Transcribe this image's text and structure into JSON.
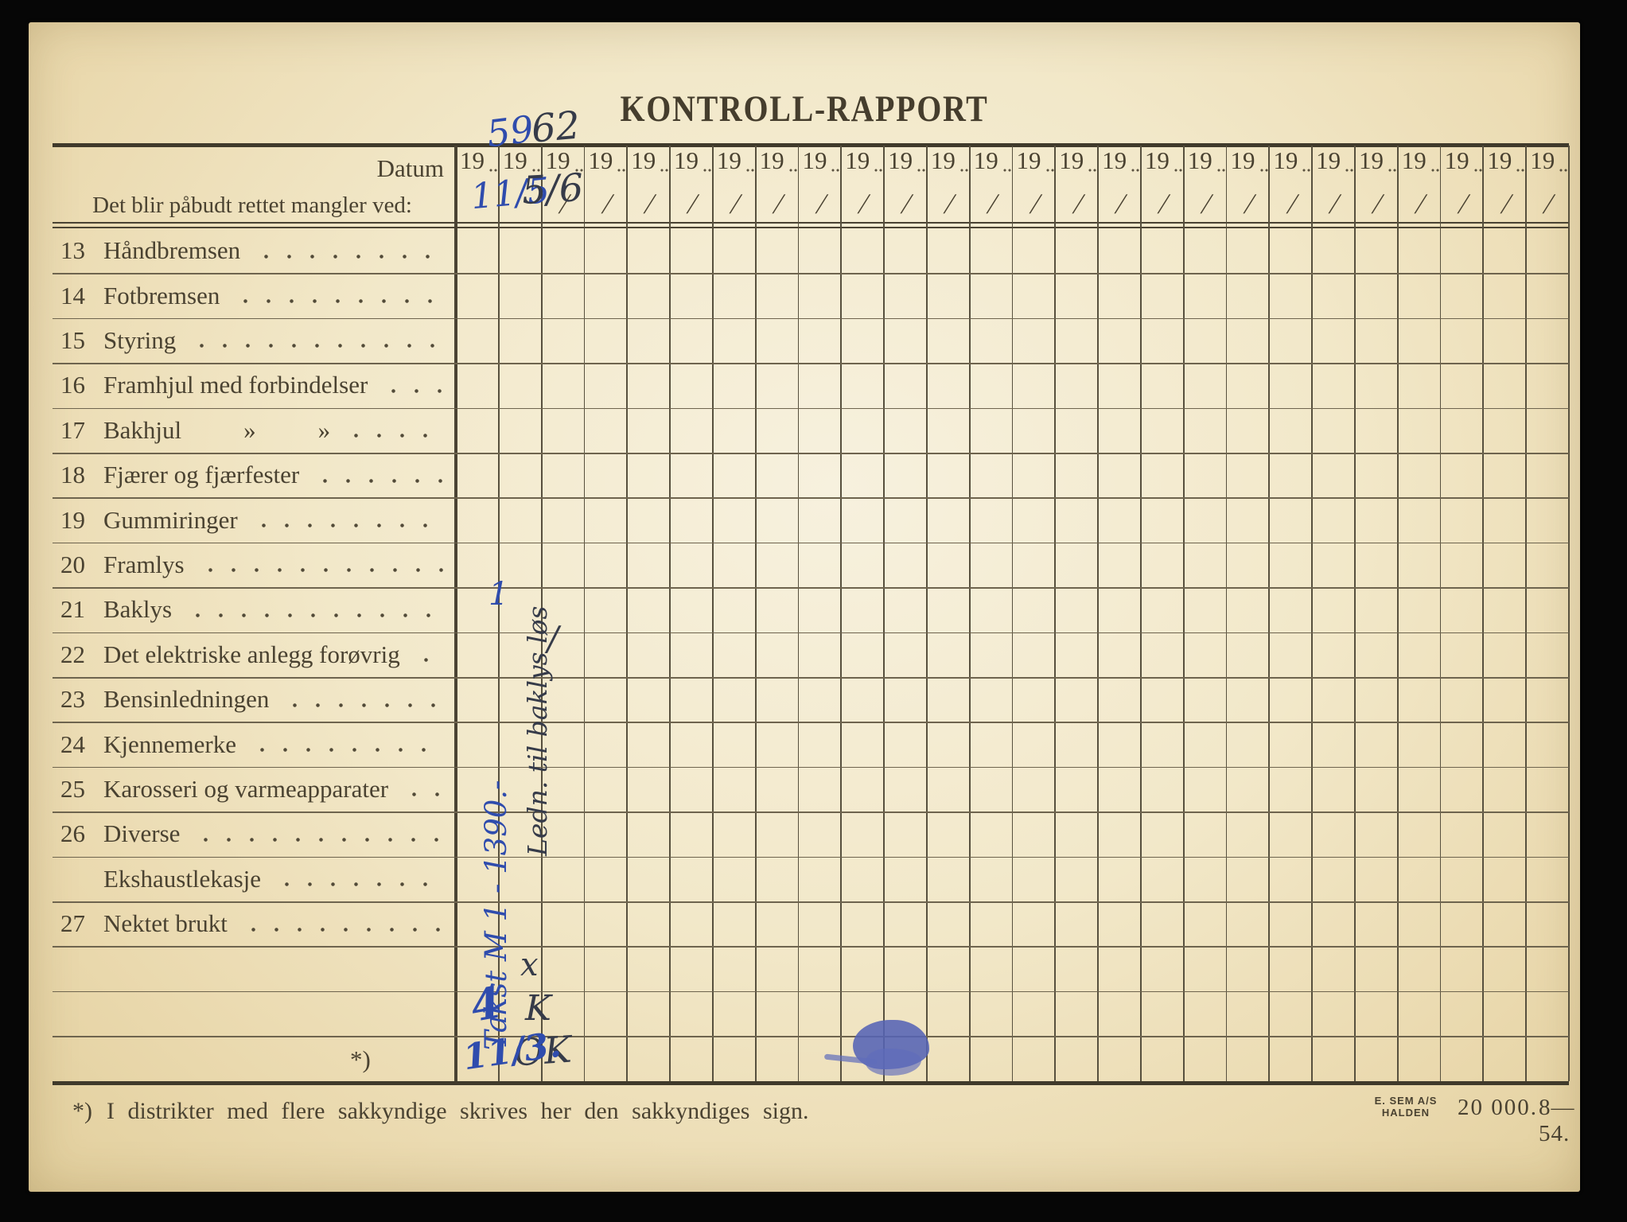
{
  "title": "KONTROLL-RAPPORT",
  "table": {
    "datum_label": "Datum",
    "mandate_label": "Det blir påbudt rettet mangler ved:",
    "year_prefix": "19",
    "date_slash": "/",
    "column_count": 26,
    "rows": [
      {
        "num": "13",
        "label": "Håndbremsen"
      },
      {
        "num": "14",
        "label": "Fotbremsen"
      },
      {
        "num": "15",
        "label": "Styring"
      },
      {
        "num": "16",
        "label": "Framhjul med forbindelser"
      },
      {
        "num": "17",
        "label": "Bakhjul",
        "ditto": [
          "»",
          "»"
        ]
      },
      {
        "num": "18",
        "label": "Fjærer og fjærfester"
      },
      {
        "num": "19",
        "label": "Gummiringer"
      },
      {
        "num": "20",
        "label": "Framlys"
      },
      {
        "num": "21",
        "label": "Baklys"
      },
      {
        "num": "22",
        "label": "Det elektriske anlegg forøvrig"
      },
      {
        "num": "23",
        "label": "Bensinledningen"
      },
      {
        "num": "24",
        "label": "Kjennemerke"
      },
      {
        "num": "25",
        "label": "Karosseri og varmeapparater"
      },
      {
        "num": "26",
        "label": "Diverse"
      },
      {
        "num": "",
        "label": "Ekshaustlekasje"
      },
      {
        "num": "27",
        "label": "Nektet brukt"
      },
      {
        "num": "",
        "label": ""
      },
      {
        "num": "",
        "label": ""
      },
      {
        "num": "",
        "label": "",
        "star": "*)"
      }
    ]
  },
  "handwriting": {
    "year_col1": "59",
    "year_col2": "62",
    "date_col1": "11/5",
    "date_col2": "5/6",
    "note_col1_vertical": "Takst M 1 - 1390.-",
    "note_col2_vertical": "Ledn. til baklys løs",
    "mark_col1_baklys": "1",
    "mark_col2_stroke": "/",
    "mark_col2_x": "x",
    "mark_col2_k": "K",
    "mark_col2_ok": "OK",
    "mark_col1_sig": "4",
    "mark_col1_date2": "11/3."
  },
  "footer": {
    "footnote_star": "*)",
    "footnote": "I distrikter med flere sakkyndige skrives her den sakkyndiges sign.",
    "printer_line1": "E. SEM A/S",
    "printer_line2": "HALDEN",
    "print_run": "20 000.",
    "print_edition": "8—54."
  },
  "colors": {
    "paper": "#f2e9cd",
    "print_ink": "#4a4231",
    "grid_line": "#5f5645",
    "blue_ink": "#2f4cad",
    "dark_ink": "#363b49",
    "ink_blot": "#5563b5",
    "background": "#060606"
  }
}
